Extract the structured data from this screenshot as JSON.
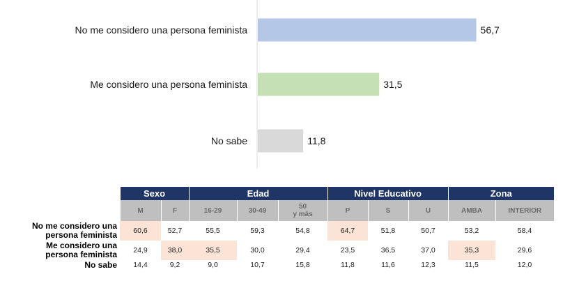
{
  "chart_data": [
    {
      "type": "bar",
      "orientation": "horizontal",
      "categories": [
        "No me considero una persona feminista",
        "Me considero una persona feminista",
        "No sabe"
      ],
      "values": [
        56.7,
        31.5,
        11.8
      ],
      "value_labels": [
        "56,7",
        "31,5",
        "11,8"
      ],
      "colors": [
        "#b4c7e7",
        "#c5e0b4",
        "#d9d9d9"
      ],
      "xlim": [
        0,
        100
      ],
      "grid": false,
      "legend": "none"
    },
    {
      "type": "table",
      "groups": [
        {
          "label": "Sexo",
          "span": 2
        },
        {
          "label": "Edad",
          "span": 3
        },
        {
          "label": "Nivel Educativo",
          "span": 3
        },
        {
          "label": "Zona",
          "span": 2
        }
      ],
      "columns": [
        "M",
        "F",
        "16-29",
        "30-49",
        "50\ny más",
        "P",
        "S",
        "U",
        "AMBA",
        "INTERIOR"
      ],
      "rows": [
        {
          "label": "No me considero una\npersona feminista",
          "values": [
            "60,6",
            "52,7",
            "55,5",
            "59,3",
            "54,8",
            "64,7",
            "51,8",
            "50,7",
            "53,2",
            "58,4"
          ],
          "highlight": [
            true,
            false,
            false,
            false,
            false,
            true,
            false,
            false,
            false,
            false
          ]
        },
        {
          "label": "Me considero una\npersona feminista",
          "values": [
            "24,9",
            "38,0",
            "35,5",
            "30,0",
            "29,4",
            "23,5",
            "36,5",
            "37,0",
            "35,3",
            "29,6"
          ],
          "highlight": [
            false,
            true,
            true,
            false,
            false,
            false,
            false,
            false,
            true,
            false
          ]
        },
        {
          "label": "No sabe",
          "values": [
            "14,4",
            "9,2",
            "9,0",
            "10,7",
            "15,8",
            "11,8",
            "11,6",
            "12,3",
            "11,5",
            "12,0"
          ],
          "highlight": [
            false,
            false,
            false,
            false,
            false,
            false,
            false,
            false,
            false,
            false
          ]
        }
      ],
      "colors": {
        "group_header": "#1f3566",
        "sub_header": "#bfbfbf",
        "highlight": "#fbe4d5"
      }
    }
  ]
}
